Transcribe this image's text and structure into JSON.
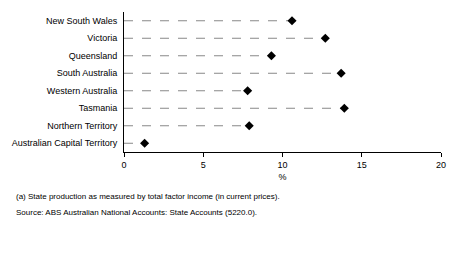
{
  "chart_data": {
    "type": "dot",
    "orientation": "horizontal",
    "categories": [
      "New South Wales",
      "Victoria",
      "Queensland",
      "South Australia",
      "Western Australia",
      "Tasmania",
      "Northern Territory",
      "Australian Capital Territory"
    ],
    "values": [
      10.6,
      12.7,
      9.3,
      13.7,
      7.8,
      13.9,
      7.9,
      1.3
    ],
    "color": "#000000",
    "marker": "diamond",
    "line_style": "dashed",
    "x_label": "%",
    "xlim": [
      0,
      20
    ],
    "xticks": [
      0,
      5,
      10,
      15,
      20
    ],
    "grid": false,
    "notes": [
      "(a) State production as measured by total factor income (in current prices).",
      "Source: ABS Australian National Accounts: State Accounts (5220.0)."
    ]
  }
}
